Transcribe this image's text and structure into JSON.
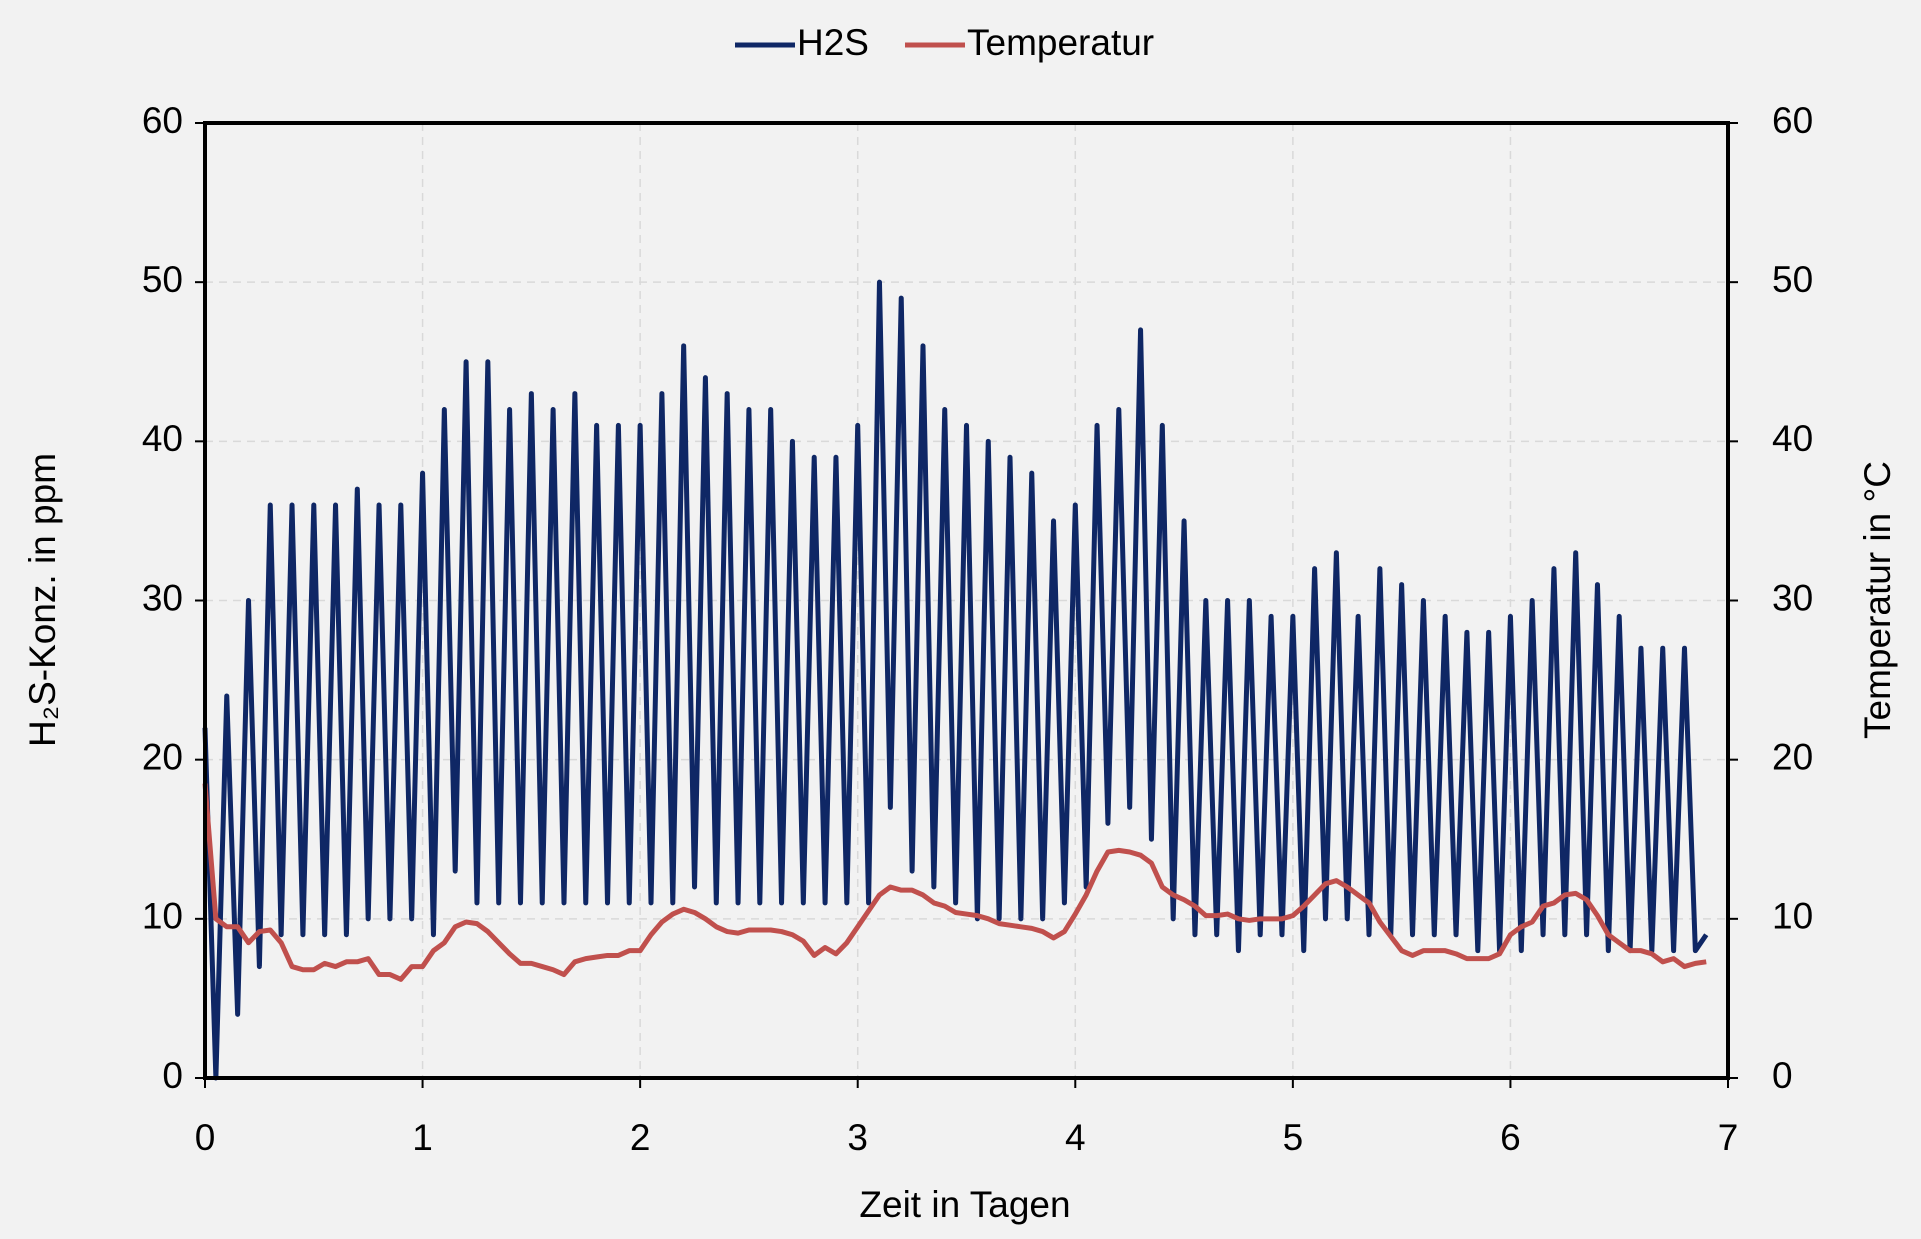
{
  "chart_data": {
    "type": "line",
    "y_label": "H₂S-Konz.  in ppm",
    "y2_label": "Temperatur in °C",
    "x_label": "Zeit in Tagen",
    "xlim": [
      0,
      7
    ],
    "xticks": [
      0,
      1,
      2,
      3,
      4,
      5,
      6,
      7
    ],
    "ylim": [
      0,
      60
    ],
    "yticks": [
      0,
      10,
      20,
      30,
      40,
      50,
      60
    ],
    "y2lim": [
      0,
      60
    ],
    "y2ticks": [
      0,
      10,
      20,
      30,
      40,
      50,
      60
    ],
    "grid": true,
    "legend": "top",
    "x": [
      0,
      0.05,
      0.1,
      0.15,
      0.2,
      0.25,
      0.3,
      0.35,
      0.4,
      0.45,
      0.5,
      0.55,
      0.6,
      0.65,
      0.7,
      0.75,
      0.8,
      0.85,
      0.9,
      0.95,
      1,
      1.05,
      1.1,
      1.15,
      1.2,
      1.25,
      1.3,
      1.35,
      1.4,
      1.45,
      1.5,
      1.55,
      1.6,
      1.65,
      1.7,
      1.75,
      1.8,
      1.85,
      1.9,
      1.95,
      2,
      2.05,
      2.1,
      2.15,
      2.2,
      2.25,
      2.3,
      2.35,
      2.4,
      2.45,
      2.5,
      2.55,
      2.6,
      2.65,
      2.7,
      2.75,
      2.8,
      2.85,
      2.9,
      2.95,
      3,
      3.05,
      3.1,
      3.15,
      3.2,
      3.25,
      3.3,
      3.35,
      3.4,
      3.45,
      3.5,
      3.55,
      3.6,
      3.65,
      3.7,
      3.75,
      3.8,
      3.85,
      3.9,
      3.95,
      4,
      4.05,
      4.1,
      4.15,
      4.2,
      4.25,
      4.3,
      4.35,
      4.4,
      4.45,
      4.5,
      4.55,
      4.6,
      4.65,
      4.7,
      4.75,
      4.8,
      4.85,
      4.9,
      4.95,
      5,
      5.05,
      5.1,
      5.15,
      5.2,
      5.25,
      5.3,
      5.35,
      5.4,
      5.45,
      5.5,
      5.55,
      5.6,
      5.65,
      5.7,
      5.75,
      5.8,
      5.85,
      5.9,
      5.95,
      6,
      6.05,
      6.1,
      6.15,
      6.2,
      6.25,
      6.3,
      6.35,
      6.4,
      6.45,
      6.5,
      6.55,
      6.6,
      6.65,
      6.7,
      6.75,
      6.8,
      6.85,
      6.9
    ],
    "series": [
      {
        "name": "H2S",
        "color": "#0f2765",
        "axis": "y",
        "values": [
          22,
          0,
          24,
          4,
          30,
          7,
          36,
          9,
          36,
          9,
          36,
          9,
          36,
          9,
          37,
          10,
          36,
          10,
          36,
          10,
          38,
          9,
          42,
          13,
          45,
          11,
          45,
          11,
          42,
          11,
          43,
          11,
          42,
          11,
          43,
          11,
          41,
          11,
          41,
          11,
          41,
          11,
          43,
          11,
          46,
          12,
          44,
          11,
          43,
          11,
          42,
          11,
          42,
          11,
          40,
          11,
          39,
          11,
          39,
          11,
          41,
          11,
          50,
          17,
          49,
          13,
          46,
          12,
          42,
          11,
          41,
          10,
          40,
          10,
          39,
          10,
          38,
          10,
          35,
          11,
          36,
          12,
          41,
          16,
          42,
          17,
          47,
          15,
          41,
          10,
          35,
          9,
          30,
          9,
          30,
          8,
          30,
          9,
          29,
          9,
          29,
          8,
          32,
          10,
          33,
          10,
          29,
          9,
          32,
          9,
          31,
          9,
          30,
          9,
          29,
          9,
          28,
          8,
          28,
          8,
          29,
          8,
          30,
          9,
          32,
          9,
          33,
          9,
          31,
          8,
          29,
          8,
          27,
          8,
          27,
          8,
          27,
          8,
          9
        ]
      },
      {
        "name": "Temperatur",
        "color": "#c0504d",
        "axis": "y2",
        "values": [
          18.5,
          10,
          9.5,
          9.5,
          8.5,
          9.2,
          9.3,
          8.5,
          7,
          6.8,
          6.8,
          7.2,
          7,
          7.3,
          7.3,
          7.5,
          6.5,
          6.5,
          6.2,
          7,
          7,
          8,
          8.5,
          9.5,
          9.8,
          9.7,
          9.2,
          8.5,
          7.8,
          7.2,
          7.2,
          7,
          6.8,
          6.5,
          7.3,
          7.5,
          7.6,
          7.7,
          7.7,
          8,
          8,
          9,
          9.8,
          10.3,
          10.6,
          10.4,
          10,
          9.5,
          9.2,
          9.1,
          9.3,
          9.3,
          9.3,
          9.2,
          9,
          8.6,
          7.7,
          8.2,
          7.8,
          8.5,
          9.5,
          10.5,
          11.5,
          12,
          11.8,
          11.8,
          11.5,
          11,
          10.8,
          10.4,
          10.3,
          10.2,
          10,
          9.7,
          9.6,
          9.5,
          9.4,
          9.2,
          8.8,
          9.2,
          10.3,
          11.5,
          13,
          14.2,
          14.3,
          14.2,
          14,
          13.5,
          12,
          11.5,
          11.2,
          10.8,
          10.2,
          10.2,
          10.3,
          10,
          9.9,
          10,
          10,
          10,
          10.2,
          10.8,
          11.5,
          12.2,
          12.4,
          12,
          11.5,
          11,
          9.8,
          8.9,
          8,
          7.7,
          8,
          8,
          8,
          7.8,
          7.5,
          7.5,
          7.5,
          7.8,
          9,
          9.5,
          9.8,
          10.8,
          11,
          11.5,
          11.6,
          11.2,
          10.2,
          9,
          8.5,
          8,
          8,
          7.8,
          7.3,
          7.5,
          7,
          7.2,
          7.3
        ]
      }
    ]
  }
}
